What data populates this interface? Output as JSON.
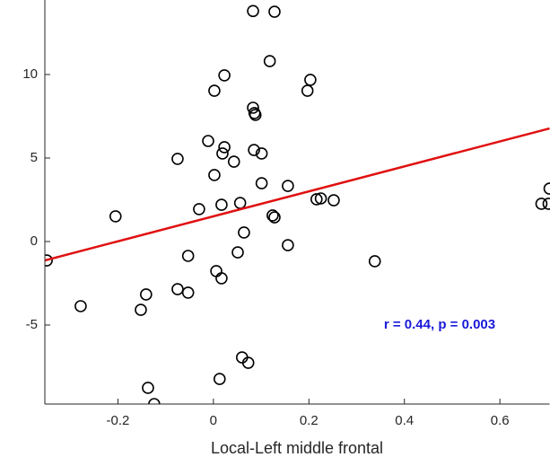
{
  "chart_data": {
    "type": "scatter",
    "xlabel": "Local-Left middle frontal",
    "annotation": "r = 0.44, p = 0.003",
    "annotation_color": "#1a1ad9",
    "xlim": [
      -0.353,
      0.704
    ],
    "ylim": [
      -9.73,
      14.46
    ],
    "xticks": [
      -0.2,
      0,
      0.2,
      0.4,
      0.6
    ],
    "yticks": [
      -5,
      0,
      5,
      10
    ],
    "series": [
      {
        "color": "#000000",
        "x": [
          0.083,
          0.128,
          0.118,
          0.023,
          0.002,
          0.203,
          0.197,
          0.083,
          0.086,
          0.088,
          -0.011,
          0.023,
          0.019,
          -0.075,
          0.043,
          0.085,
          0.101,
          0.002,
          0.101,
          0.156,
          0.216,
          0.225,
          0.252,
          0.056,
          0.017,
          -0.03,
          -0.205,
          0.124,
          0.128,
          0.064,
          -0.053,
          0.051,
          0.156,
          -0.349,
          0.338,
          0.006,
          0.017,
          -0.075,
          -0.053,
          -0.141,
          -0.278,
          -0.152,
          0.06,
          0.073,
          0.013,
          -0.137,
          -0.124,
          0.687,
          0.702,
          0.704
        ],
        "values": [
          13.8,
          13.76,
          10.8,
          9.95,
          9.03,
          9.68,
          9.03,
          8.01,
          7.69,
          7.58,
          6.02,
          5.65,
          5.27,
          4.95,
          4.78,
          5.48,
          5.27,
          3.98,
          3.49,
          3.33,
          2.53,
          2.58,
          2.47,
          2.31,
          2.2,
          1.94,
          1.51,
          1.56,
          1.45,
          0.54,
          -0.86,
          -0.65,
          -0.22,
          -1.13,
          -1.18,
          -1.77,
          -2.2,
          -2.85,
          -3.06,
          -3.17,
          -3.87,
          -4.09,
          -6.94,
          -7.26,
          -8.23,
          -8.76,
          -9.73,
          2.26,
          2.26,
          3.17
        ]
      }
    ],
    "fit": {
      "color": "#e01010",
      "x": [
        -0.353,
        0.704
      ],
      "values": [
        -1.13,
        6.77
      ]
    }
  }
}
